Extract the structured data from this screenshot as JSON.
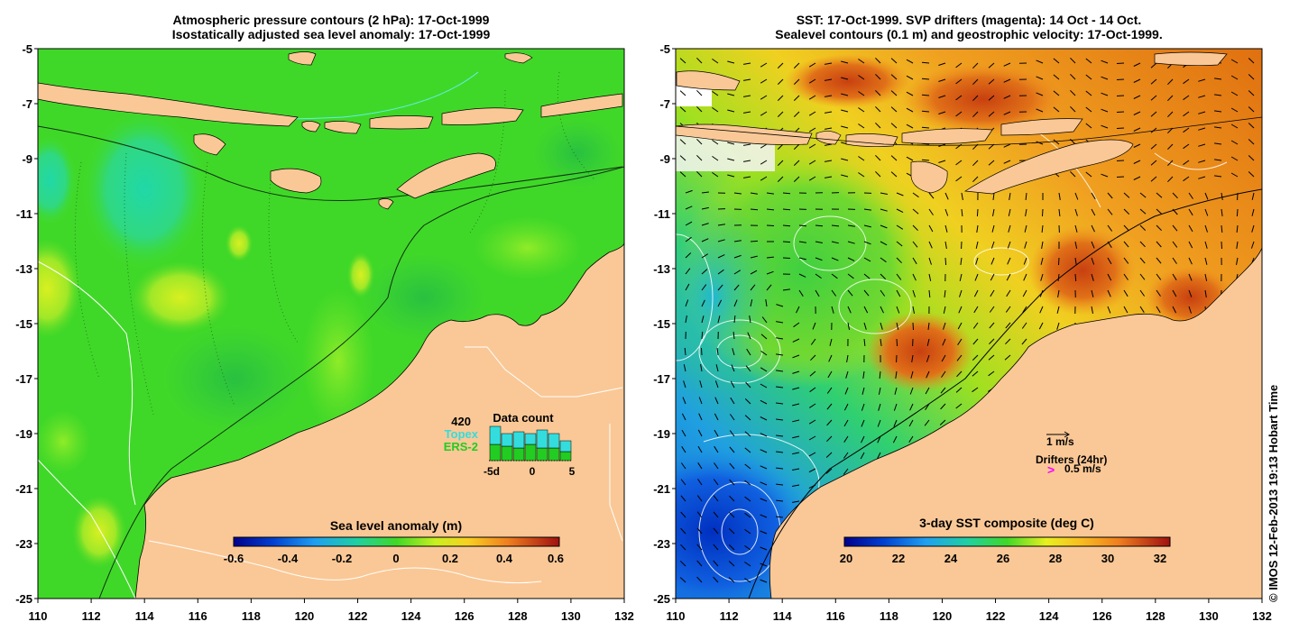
{
  "left_panel": {
    "title_line1": "Atmospheric pressure contours (2 hPa): 17-Oct-1999",
    "title_line2": "Isostatically adjusted sea level anomaly: 17-Oct-1999",
    "colorbar_label": "Sea level anomaly (m)",
    "colorbar_ticks": [
      "-0.6",
      "-0.4",
      "-0.2",
      "0",
      "0.2",
      "0.4",
      "0.6"
    ],
    "data_count": {
      "number": "420",
      "title": "Data count",
      "topex_label": "Topex",
      "ers2_label": "ERS-2",
      "axis_labels": [
        "-5d",
        "0",
        "5"
      ],
      "topex_color": "#33dddd",
      "ers2_color": "#22cc22"
    }
  },
  "right_panel": {
    "title_line1": "SST: 17-Oct-1999. SVP drifters (magenta): 14 Oct - 14 Oct.",
    "title_line2": "Sealevel contours (0.1 m) and geostrophic velocity: 17-Oct-1999.",
    "colorbar_label": "3-day SST composite (deg C)",
    "colorbar_ticks": [
      "20",
      "22",
      "24",
      "26",
      "28",
      "30",
      "32"
    ],
    "velocity_scale": "1 m/s",
    "drifters_label": "Drifters (24hr)",
    "drifters_scale": "0.5 m/s",
    "drifter_symbol": ">",
    "drifter_color": "#ff00ff"
  },
  "axes": {
    "lat_ticks": [
      "-5",
      "-7",
      "-9",
      "-11",
      "-13",
      "-15",
      "-17",
      "-19",
      "-21",
      "-23",
      "-25"
    ],
    "lon_ticks": [
      "110",
      "112",
      "114",
      "116",
      "118",
      "120",
      "122",
      "124",
      "126",
      "128",
      "130",
      "132"
    ]
  },
  "credit": "© IMOS 12-Feb-2013 19:13 Hobart Time",
  "colors": {
    "land": "#fac896",
    "ocean_sla": "#40dc28",
    "ocean_sst": "#f0a020"
  }
}
